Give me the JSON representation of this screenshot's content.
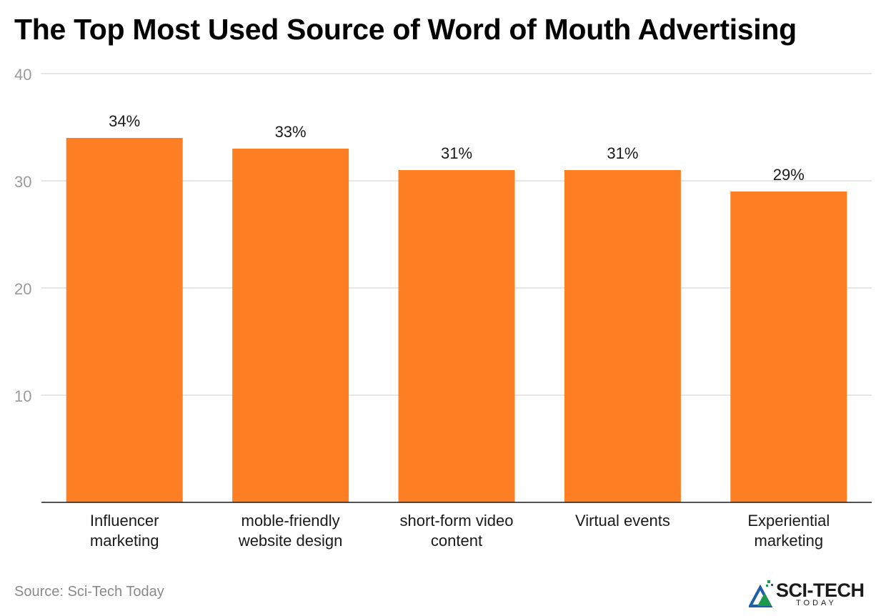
{
  "chart_data": {
    "type": "bar",
    "title": "The Top Most Used Source of Word of Mouth Advertising",
    "categories": [
      [
        "Influencer",
        "marketing"
      ],
      [
        "moble-friendly",
        "website design"
      ],
      [
        "short-form video",
        "content"
      ],
      [
        "Virtual events"
      ],
      [
        "Experiential",
        "marketing"
      ]
    ],
    "values": [
      34,
      33,
      31,
      31,
      29
    ],
    "value_labels": [
      "34%",
      "33%",
      "31%",
      "31%",
      "29%"
    ],
    "yticks": [
      10,
      20,
      30,
      40
    ],
    "ylim": [
      0,
      40
    ],
    "grid": true,
    "bar_color": "#fe7f23",
    "xlabel": "",
    "ylabel": ""
  },
  "source": "Source: Sci-Tech Today",
  "logo": {
    "main": "SCI-TECH",
    "sub": "TODAY",
    "icon": "mountain-logo-icon",
    "colors": [
      "#1f9a4a",
      "#1f5fa8"
    ]
  }
}
